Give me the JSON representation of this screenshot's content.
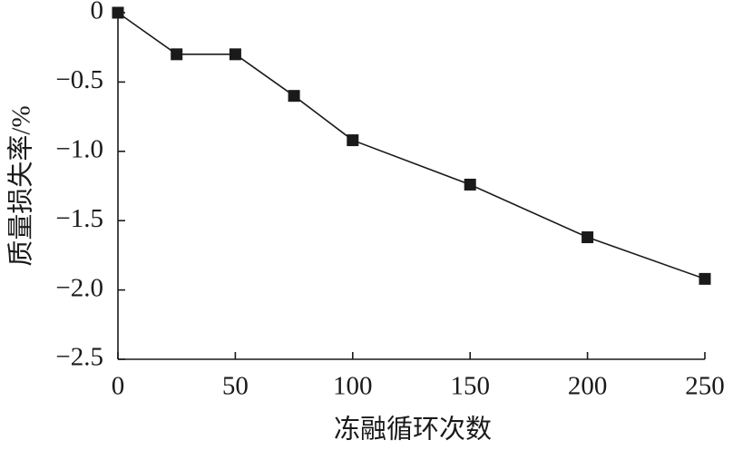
{
  "chart_data": {
    "type": "line",
    "xlabel": "冻融循环次数",
    "ylabel": "质量损失率/%",
    "x": [
      0,
      25,
      50,
      75,
      100,
      150,
      200,
      250
    ],
    "series": [
      {
        "color": "#1a1a1a",
        "values": [
          0,
          -0.3,
          -0.3,
          -0.6,
          -0.92,
          -1.24,
          -1.62,
          -1.92
        ]
      }
    ],
    "xlim": [
      0,
      250
    ],
    "ylim": [
      -2.5,
      0
    ],
    "xticks": [
      0,
      50,
      100,
      150,
      200,
      250
    ],
    "yticks": [
      0,
      {
        "value": -0.5,
        "label": "−0.5"
      },
      {
        "value": -1.0,
        "label": "−1.0"
      },
      {
        "value": -1.5,
        "label": "−1.5"
      },
      {
        "value": -2.0,
        "label": "−2.0"
      },
      {
        "value": -2.5,
        "label": "−2.5"
      }
    ],
    "grid": false
  }
}
